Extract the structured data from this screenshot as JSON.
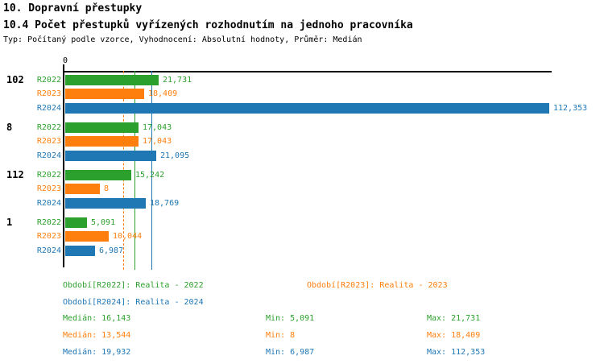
{
  "header": {
    "title1": "10. Dopravní přestupky",
    "title2": "10.4 Počet přestupků vyřízených rozhodnutím na jednoho pracovníka",
    "meta": "Typ: Počítaný podle vzorce, Vyhodnocení: Absolutní hodnoty, Průměr: Medián"
  },
  "chart_data": {
    "type": "bar",
    "orientation": "horizontal",
    "axis_zero_label": "0",
    "xlim": [
      0,
      112.353
    ],
    "grid": "median-lines-only",
    "groups": [
      "102",
      "8",
      "112",
      "1"
    ],
    "series": [
      {
        "name": "R2022",
        "color": "#2CA02C",
        "values": [
          21.731,
          17.043,
          15.242,
          5.091
        ],
        "labels": [
          "21,731",
          "17,043",
          "15,242",
          "5,091"
        ]
      },
      {
        "name": "R2023",
        "color": "#FF7F0E",
        "values": [
          18.409,
          17.043,
          8,
          10.044
        ],
        "labels": [
          "18,409",
          "17,043",
          "8",
          "10,044"
        ]
      },
      {
        "name": "R2024",
        "color": "#1F77B4",
        "values": [
          112.353,
          21.095,
          18.769,
          6.987
        ],
        "labels": [
          "112,353",
          "21,095",
          "18,769",
          "6,987"
        ]
      }
    ],
    "median_lines": [
      {
        "series": "R2023",
        "value": 13.544,
        "color": "#FF7F0E",
        "style": "dashed"
      },
      {
        "series": "R2022",
        "value": 16.143,
        "color": "#2CA02C",
        "style": "solid"
      },
      {
        "series": "R2024",
        "value": 19.932,
        "color": "#1F77B4",
        "style": "solid"
      }
    ]
  },
  "legend": {
    "r2022": "Období[R2022]: Realita - 2022",
    "r2023": "Období[R2023]: Realita - 2023",
    "r2024": "Období[R2024]: Realita - 2024"
  },
  "stats": {
    "r2022": {
      "median": "Medián: 16,143",
      "min": "Min: 5,091",
      "max": "Max: 21,731"
    },
    "r2023": {
      "median": "Medián: 13,544",
      "min": "Min: 8",
      "max": "Max: 18,409"
    },
    "r2024": {
      "median": "Medián: 19,932",
      "min": "Min: 6,987",
      "max": "Max: 112,353"
    }
  },
  "colors": {
    "r2022": "#2CA02C",
    "r2023": "#FF7F0E",
    "r2024": "#1F77B4",
    "axis": "#000000"
  }
}
